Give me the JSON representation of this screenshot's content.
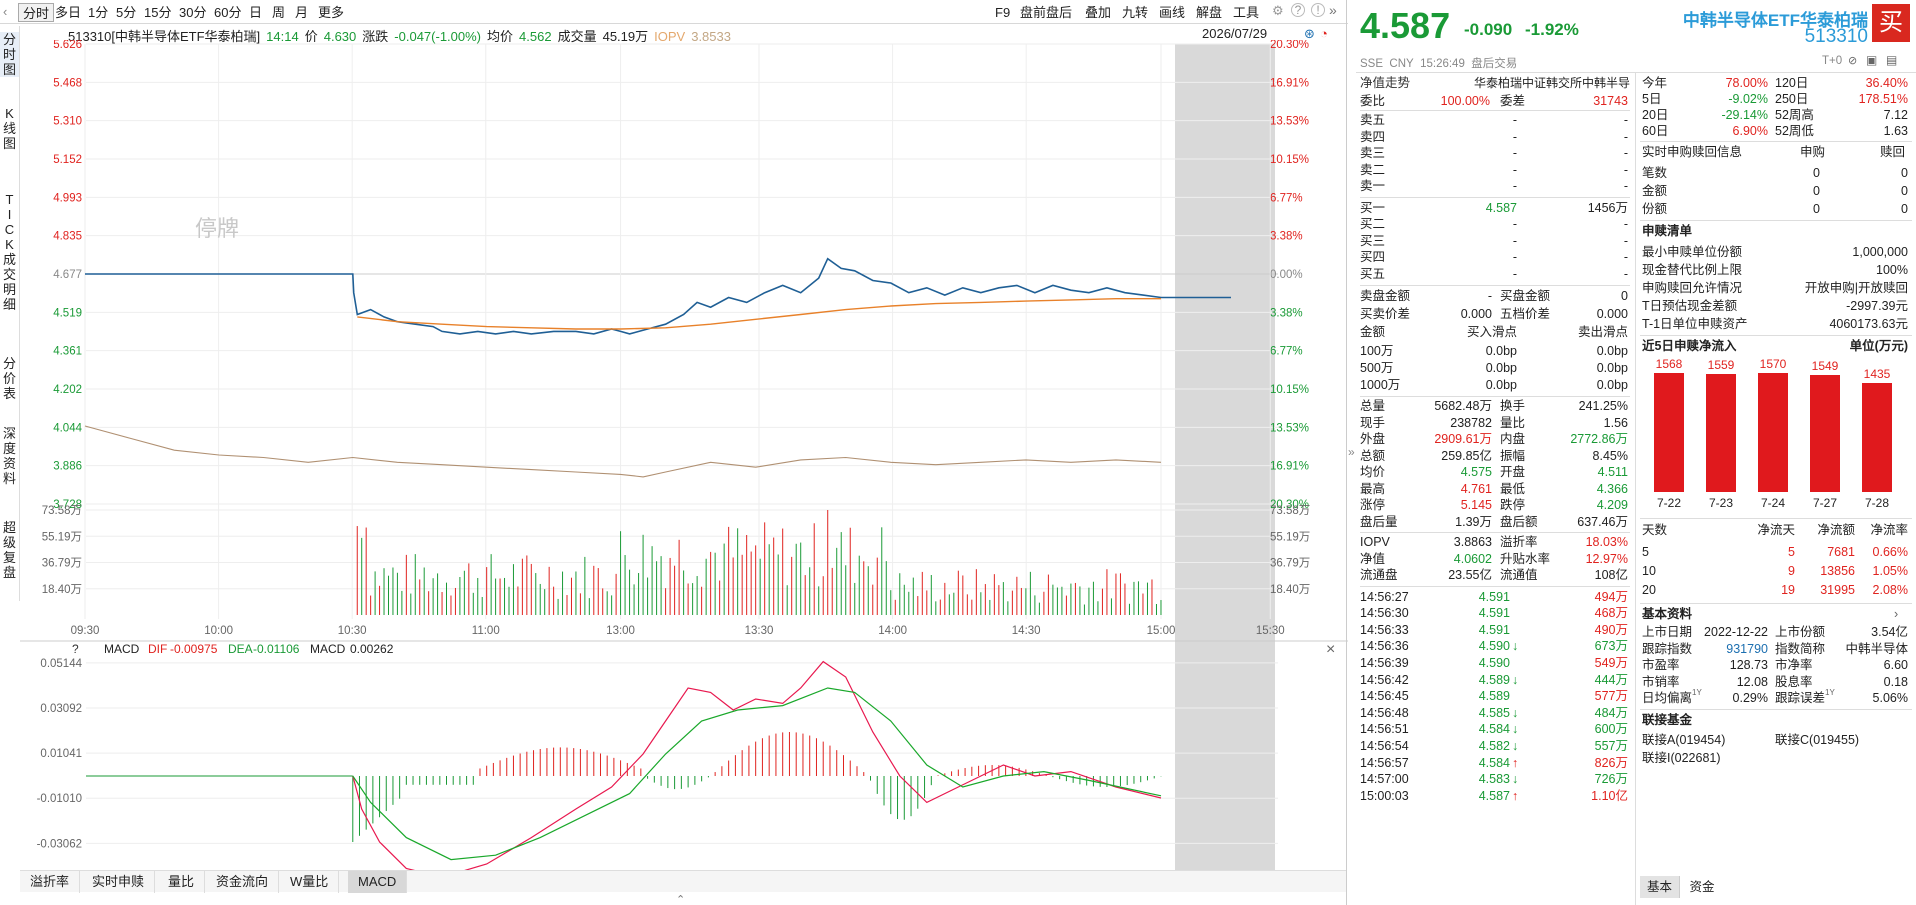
{
  "toolbar": {
    "periods": [
      "分时",
      "多日",
      "1分",
      "5分",
      "15分",
      "30分",
      "60分",
      "日",
      "周",
      "月",
      "更多"
    ],
    "tools": [
      "F9",
      "盘前盘后",
      "叠加",
      "九转",
      "画线",
      "解盘",
      "工具"
    ]
  },
  "left_tabs": [
    "分时图",
    "K线图",
    "TICK成交明细",
    "分价表",
    "深度资料",
    "超级复盘"
  ],
  "info": {
    "code_name": "513310[中韩半导体ETF华泰柏瑞]",
    "time": "14:14",
    "price_label": "价",
    "price": "4.630",
    "change_label": "涨跌",
    "change": "-0.047(-1.00%)",
    "avg_label": "均价",
    "avg": "4.562",
    "vol_label": "成交量",
    "vol": "45.19万",
    "iopv_label": "IOPV",
    "iopv": "3.8533",
    "date": "2026/07/29"
  },
  "chart_data": [
    {
      "type": "line",
      "title": "",
      "ylabel_left": [
        "5.626",
        "5.468",
        "5.310",
        "5.152",
        "4.993",
        "4.835",
        "4.677",
        "4.519",
        "4.361",
        "4.202",
        "4.044",
        "3.886",
        "3.728"
      ],
      "ylabel_right": [
        "20.30%",
        "16.91%",
        "13.53%",
        "10.15%",
        "6.77%",
        "3.38%",
        "0.00%",
        "3.38%",
        "6.77%",
        "10.15%",
        "13.53%",
        "16.91%",
        "20.30%"
      ],
      "ylim": [
        3.728,
        5.626
      ],
      "x_ticks": [
        "09:30",
        "10:00",
        "10:30",
        "11:00",
        "11:30",
        "13:00",
        "13:30",
        "14:00",
        "14:30",
        "15:00",
        "15:30"
      ],
      "suspended_label": "停牌",
      "series": [
        {
          "name": "价",
          "color": "#1f5f95",
          "x": [
            0,
            60,
            60.5,
            63,
            70,
            80,
            90,
            95,
            100,
            110,
            120,
            125,
            130,
            135,
            140,
            145,
            150,
            155,
            160,
            165,
            170,
            172,
            175,
            180,
            185,
            190,
            200,
            210,
            220,
            230,
            240,
            250,
            260,
            270,
            290,
            310,
            330,
            350,
            370,
            380,
            390,
            400,
            420,
            440,
            450,
            460,
            480,
            500,
            520,
            540,
            550,
            560,
            570,
            580,
            600,
            620,
            640,
            660,
            680,
            700,
            720,
            740,
            760,
            780,
            800
          ],
          "y": [
            4.677,
            4.677,
            4.677,
            4.677,
            4.677,
            4.677,
            4.677,
            4.677,
            4.677,
            4.677,
            4.677,
            4.677,
            4.677,
            4.677,
            4.677,
            4.677,
            4.677,
            4.677,
            4.677,
            4.677,
            4.677,
            4.677,
            4.677,
            4.677,
            4.677,
            4.677,
            4.677,
            4.677,
            4.677,
            4.677,
            4.677,
            4.677,
            4.677,
            4.677,
            4.5,
            4.46,
            4.43,
            4.44,
            4.43,
            4.46,
            4.44,
            4.43,
            4.45,
            4.42,
            4.5,
            4.56,
            4.55,
            4.6,
            4.63,
            4.7,
            4.74,
            4.68,
            4.65,
            4.62,
            4.6,
            4.62,
            4.6,
            4.62,
            4.63,
            4.58,
            4.62,
            4.6,
            4.58,
            4.6,
            4.58
          ]
        },
        {
          "name": "均价",
          "color": "#e8812a"
        },
        {
          "name": "IOPV",
          "color": "#b09072"
        }
      ]
    },
    {
      "type": "bar",
      "ylabel": [
        "73.58万",
        "55.19万",
        "36.79万",
        "18.40万"
      ],
      "ylim": [
        0,
        73.58
      ]
    },
    {
      "type": "bar",
      "title": "MACD",
      "ylabel": [
        "0.05144",
        "0.03092",
        "0.01041",
        "-0.01010",
        "-0.03062"
      ],
      "ylim": [
        -0.045,
        0.055
      ],
      "labels": {
        "macd": "MACD",
        "dif_label": "DIF",
        "dif": "-0.00975",
        "dea_label": "DEA",
        "dea": "-0.01106",
        "macd_label": "MACD",
        "macd_val": "0.00262"
      }
    }
  ],
  "bottom_tabs": [
    "溢折率",
    "实时申赎",
    "量比",
    "资金流向",
    "W量比",
    "MACD"
  ],
  "quote": {
    "price": "4.587",
    "change": "-0.090",
    "pct": "-1.92%",
    "name": "中韩半导体ETF华泰柏瑞",
    "code": "513310",
    "market": "SSE",
    "currency": "CNY",
    "time": "15:26:49",
    "status": "盘后交易",
    "t0": "T+0",
    "buy": "买"
  },
  "net_value": {
    "label": "净值走势",
    "index_name": "华泰柏瑞中证韩交所中韩半导"
  },
  "order_book": {
    "weibi_label": "委比",
    "weibi": "100.00%",
    "weicha_label": "委差",
    "weicha": "31743",
    "sells": [
      {
        "l": "卖五",
        "p": "-",
        "v": "-"
      },
      {
        "l": "卖四",
        "p": "-",
        "v": "-"
      },
      {
        "l": "卖三",
        "p": "-",
        "v": "-"
      },
      {
        "l": "卖二",
        "p": "-",
        "v": "-"
      },
      {
        "l": "卖一",
        "p": "-",
        "v": "-"
      }
    ],
    "buys": [
      {
        "l": "买一",
        "p": "4.587",
        "v": "1456万"
      },
      {
        "l": "买二",
        "p": "-",
        "v": "-"
      },
      {
        "l": "买三",
        "p": "-",
        "v": "-"
      },
      {
        "l": "买四",
        "p": "-",
        "v": "-"
      },
      {
        "l": "买五",
        "p": "-",
        "v": "-"
      }
    ]
  },
  "stats": [
    [
      "卖盘金额",
      "-",
      "买盘金额",
      "0"
    ],
    [
      "买卖价差",
      "0.000",
      "五档价差",
      "0.000"
    ]
  ],
  "slippage": {
    "head": [
      "金额",
      "买入滑点",
      "卖出滑点"
    ],
    "rows": [
      [
        "100万",
        "0.0bp",
        "0.0bp"
      ],
      [
        "500万",
        "0.0bp",
        "0.0bp"
      ],
      [
        "1000万",
        "0.0bp",
        "0.0bp"
      ]
    ]
  },
  "detail": [
    [
      "总量",
      "5682.48万",
      "换手",
      "241.25%"
    ],
    [
      "现手",
      "238782",
      "量比",
      "1.56"
    ],
    [
      "外盘",
      "2909.61万",
      "内盘",
      "2772.86万"
    ],
    [
      "总额",
      "259.85亿",
      "振幅",
      "8.45%"
    ],
    [
      "均价",
      "4.575",
      "开盘",
      "4.511"
    ],
    [
      "最高",
      "4.761",
      "最低",
      "4.366"
    ],
    [
      "涨停",
      "5.145",
      "跌停",
      "4.209"
    ],
    [
      "盘后量",
      "1.39万",
      "盘后额",
      "637.46万"
    ]
  ],
  "iopv_block": [
    [
      "IOPV",
      "3.8863",
      "溢折率",
      "18.03%"
    ],
    [
      "净值",
      "4.0602",
      "升贴水率",
      "12.97%"
    ],
    [
      "流通盘",
      "23.55亿",
      "流通值",
      "108亿"
    ]
  ],
  "ticks": [
    [
      "14:56:27",
      "4.591",
      "",
      "494万"
    ],
    [
      "14:56:30",
      "4.591",
      "",
      "468万"
    ],
    [
      "14:56:33",
      "4.591",
      "",
      "490万"
    ],
    [
      "14:56:36",
      "4.590",
      "↓",
      "673万"
    ],
    [
      "14:56:39",
      "4.590",
      "",
      "549万"
    ],
    [
      "14:56:42",
      "4.589",
      "↓",
      "444万"
    ],
    [
      "14:56:45",
      "4.589",
      "",
      "577万"
    ],
    [
      "14:56:48",
      "4.585",
      "↓",
      "484万"
    ],
    [
      "14:56:51",
      "4.584",
      "↓",
      "600万"
    ],
    [
      "14:56:54",
      "4.582",
      "↓",
      "557万"
    ],
    [
      "14:56:57",
      "4.584",
      "↑",
      "826万"
    ],
    [
      "14:57:00",
      "4.583",
      "↓",
      "726万"
    ],
    [
      "15:00:03",
      "4.587",
      "↑",
      "1.10亿"
    ]
  ],
  "perf": [
    [
      "今年",
      "78.00%",
      "120日",
      "36.40%"
    ],
    [
      "5日",
      "-9.02%",
      "250日",
      "178.51%"
    ],
    [
      "20日",
      "-29.14%",
      "52周高",
      "7.12"
    ],
    [
      "60日",
      "6.90%",
      "52周低",
      "1.63"
    ]
  ],
  "subscribe": {
    "title": "实时申购赎回信息",
    "h1": "申购",
    "h2": "赎回",
    "rows": [
      [
        "笔数",
        "0",
        "0"
      ],
      [
        "金额",
        "0",
        "0"
      ],
      [
        "份额",
        "0",
        "0"
      ]
    ]
  },
  "list": {
    "title": "申赎清单",
    "rows": [
      [
        "最小申赎单位份额",
        "1,000,000"
      ],
      [
        "现金替代比例上限",
        "100%"
      ],
      [
        "申购赎回允许情况",
        "开放申购|开放赎回"
      ],
      [
        "T日预估现金差额",
        "-2997.39元"
      ],
      [
        "T-1日单位申赎资产",
        "4060173.63元"
      ]
    ]
  },
  "flow5": {
    "title": "近5日申赎净流入",
    "unit": "单位(万元)",
    "values": [
      1568,
      1559,
      1570,
      1549,
      1435
    ],
    "labels": [
      "1568",
      "1559",
      "1570",
      "1549",
      "1435"
    ],
    "dates": [
      "7-22",
      "7-23",
      "7-24",
      "7-27",
      "7-28"
    ]
  },
  "netflow": {
    "head": [
      "天数",
      "净流天",
      "净流额",
      "净流率"
    ],
    "rows": [
      [
        "5",
        "5",
        "7681",
        "0.66%"
      ],
      [
        "10",
        "9",
        "13856",
        "1.05%"
      ],
      [
        "20",
        "19",
        "31995",
        "2.08%"
      ]
    ]
  },
  "basic": {
    "title": "基本资料",
    "rows": [
      [
        "上市日期",
        "2022-12-22",
        "上市份额",
        "3.54亿"
      ],
      [
        "跟踪指数",
        "931790",
        "指数简称",
        "中韩半导体"
      ],
      [
        "市盈率",
        "128.73",
        "市净率",
        "6.60"
      ],
      [
        "市销率",
        "12.08",
        "股息率",
        "0.18"
      ],
      [
        "日均偏离",
        "0.29%",
        "跟踪误差",
        "5.06%"
      ]
    ],
    "sup": "1Y"
  },
  "linked": {
    "title": "联接基金",
    "items": [
      "联接A(019454)",
      "联接C(019455)",
      "联接I(022681)"
    ]
  },
  "bottom_right_tabs": [
    "基本",
    "资金"
  ]
}
